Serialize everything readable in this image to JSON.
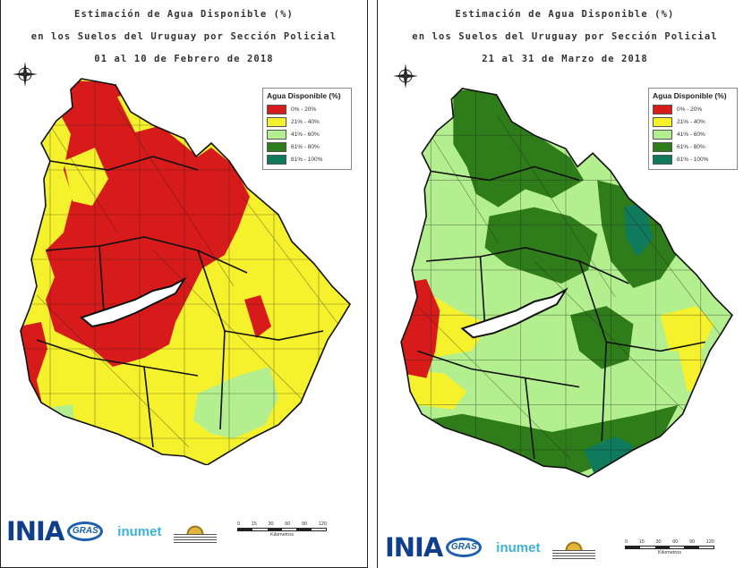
{
  "maps": [
    {
      "title_line1": "Estimación de Agua Disponible (%)",
      "title_line2": "en los Suelos del Uruguay por Sección Policial",
      "period": "01 al 10 de Febrero de 2018"
    },
    {
      "title_line1": "Estimación de Agua Disponible (%)",
      "title_line2": "en los Suelos del Uruguay por Sección Policial",
      "period": "21 al 31 de Marzo de 2018"
    }
  ],
  "legend": {
    "title": "Agua Disponible (%)",
    "classes": [
      {
        "label": "0% - 20%",
        "color": "#d71a1a"
      },
      {
        "label": "21% - 40%",
        "color": "#f5f22d"
      },
      {
        "label": "41% - 60%",
        "color": "#b3ef8e"
      },
      {
        "label": "61% - 80%",
        "color": "#2f7d1a"
      },
      {
        "label": "81% - 100%",
        "color": "#0f7a5c"
      }
    ]
  },
  "colors": {
    "boundary": "#111111",
    "lake": "#ffffff"
  },
  "logos": {
    "ina": "INIA",
    "gras": "GRAS",
    "inumet": "inumet"
  },
  "scale": {
    "ticks": [
      "0",
      "15",
      "30",
      "60",
      "90",
      "120"
    ],
    "unit": "Kilometros"
  }
}
